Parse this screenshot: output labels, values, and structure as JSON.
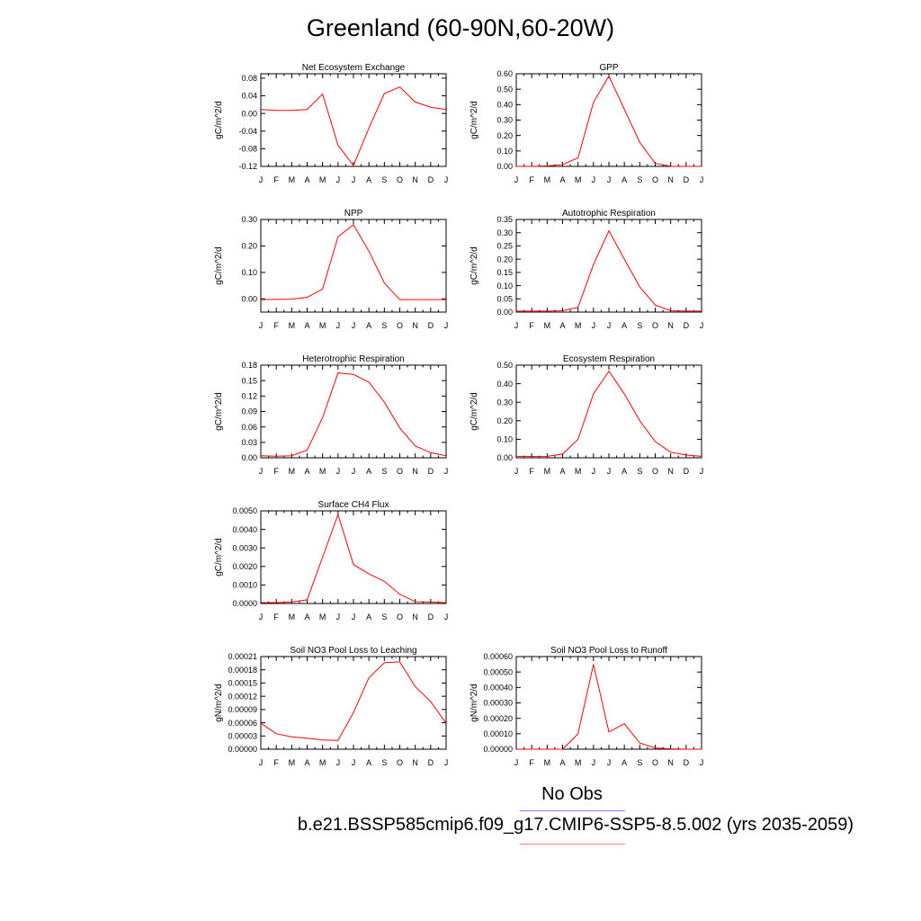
{
  "title": "Greenland (60-90N,60-20W)",
  "legend": {
    "obs_label": "No Obs",
    "obs_color": "#8080ff",
    "case_label": "b.e21.BSSP585cmip6.f09_g17.CMIP6-SSP5-8.5.002 (yrs 2035-2059)",
    "case_color": "#ff8080"
  },
  "chart_data": [
    {
      "type": "line",
      "title": "Net Ecosystem Exchange",
      "ylabel": "gC/m^2/d",
      "categories": [
        "J",
        "F",
        "M",
        "A",
        "M",
        "J",
        "J",
        "A",
        "S",
        "O",
        "N",
        "D",
        "J"
      ],
      "ylim": [
        -0.12,
        0.09
      ],
      "yticks": [
        "0.08",
        "0.04",
        "0.00",
        "-0.04",
        "-0.08",
        "-0.12"
      ],
      "series": [
        {
          "color": "#ff0000",
          "values": [
            0.009,
            0.007,
            0.007,
            0.009,
            0.044,
            -0.072,
            -0.118,
            -0.033,
            0.045,
            0.06,
            0.026,
            0.014,
            0.009
          ]
        }
      ]
    },
    {
      "type": "line",
      "title": "GPP",
      "ylabel": "gC/m^2/d",
      "categories": [
        "J",
        "F",
        "M",
        "A",
        "M",
        "J",
        "J",
        "A",
        "S",
        "O",
        "N",
        "D",
        "J"
      ],
      "ylim": [
        0,
        0.6
      ],
      "yticks": [
        "0.60",
        "0.50",
        "0.40",
        "0.30",
        "0.20",
        "0.10",
        "0.00"
      ],
      "series": [
        {
          "color": "#ff0000",
          "values": [
            0.0,
            0.0,
            0.003,
            0.012,
            0.055,
            0.415,
            0.585,
            0.37,
            0.155,
            0.02,
            0.001,
            0.0,
            0.0
          ]
        }
      ]
    },
    {
      "type": "line",
      "title": "NPP",
      "ylabel": "gC/m^2/d",
      "categories": [
        "J",
        "F",
        "M",
        "A",
        "M",
        "J",
        "J",
        "A",
        "S",
        "O",
        "N",
        "D",
        "J"
      ],
      "ylim": [
        -0.05,
        0.3
      ],
      "yticks": [
        "0.30",
        "0.20",
        "0.10",
        "0.00"
      ],
      "series": [
        {
          "color": "#ff0000",
          "values": [
            -0.003,
            -0.002,
            -0.001,
            0.006,
            0.037,
            0.235,
            0.28,
            0.18,
            0.06,
            -0.003,
            -0.003,
            -0.003,
            -0.003
          ]
        }
      ]
    },
    {
      "type": "line",
      "title": "Autotrophic Respiration",
      "ylabel": "gC/m^2/d",
      "categories": [
        "J",
        "F",
        "M",
        "A",
        "M",
        "J",
        "J",
        "A",
        "S",
        "O",
        "N",
        "D",
        "J"
      ],
      "ylim": [
        0,
        0.35
      ],
      "yticks": [
        "0.35",
        "0.30",
        "0.25",
        "0.20",
        "0.15",
        "0.10",
        "0.05",
        "0.00"
      ],
      "series": [
        {
          "color": "#ff0000",
          "values": [
            0.004,
            0.004,
            0.004,
            0.005,
            0.018,
            0.18,
            0.307,
            0.2,
            0.095,
            0.027,
            0.005,
            0.004,
            0.004
          ]
        }
      ]
    },
    {
      "type": "line",
      "title": "Heterotrophic Respiration",
      "ylabel": "gC/m^2/d",
      "categories": [
        "J",
        "F",
        "M",
        "A",
        "M",
        "J",
        "J",
        "A",
        "S",
        "O",
        "N",
        "D",
        "J"
      ],
      "ylim": [
        0,
        0.18
      ],
      "yticks": [
        "0.18",
        "0.15",
        "0.12",
        "0.09",
        "0.06",
        "0.03",
        "0.00"
      ],
      "series": [
        {
          "color": "#ff0000",
          "values": [
            0.004,
            0.003,
            0.004,
            0.015,
            0.078,
            0.165,
            0.162,
            0.147,
            0.108,
            0.058,
            0.023,
            0.01,
            0.004
          ]
        }
      ]
    },
    {
      "type": "line",
      "title": "Ecosystem Respiration",
      "ylabel": "gC/m^2/d",
      "categories": [
        "J",
        "F",
        "M",
        "A",
        "M",
        "J",
        "J",
        "A",
        "S",
        "O",
        "N",
        "D",
        "J"
      ],
      "ylim": [
        0,
        0.5
      ],
      "yticks": [
        "0.50",
        "0.40",
        "0.30",
        "0.20",
        "0.10",
        "0.00"
      ],
      "series": [
        {
          "color": "#ff0000",
          "values": [
            0.008,
            0.007,
            0.008,
            0.02,
            0.1,
            0.345,
            0.468,
            0.345,
            0.2,
            0.088,
            0.03,
            0.015,
            0.008
          ]
        }
      ]
    },
    {
      "type": "line",
      "title": "Surface CH4 Flux",
      "ylabel": "gC/m^2/d",
      "categories": [
        "J",
        "F",
        "M",
        "A",
        "M",
        "J",
        "J",
        "A",
        "S",
        "O",
        "N",
        "D",
        "J"
      ],
      "ylim": [
        0,
        0.005
      ],
      "yticks": [
        "0.0050",
        "0.0040",
        "0.0030",
        "0.0020",
        "0.0010",
        "0.0000"
      ],
      "series": [
        {
          "color": "#ff0000",
          "values": [
            5e-05,
            5e-05,
            8e-05,
            0.0002,
            0.0025,
            0.0048,
            0.0021,
            0.0016,
            0.0012,
            0.0005,
            0.0001,
            8e-05,
            5e-05
          ]
        }
      ]
    },
    {
      "type": "line",
      "title": "Soil NO3 Pool Loss to Leaching",
      "ylabel": "gN/m^2/d",
      "categories": [
        "J",
        "F",
        "M",
        "A",
        "M",
        "J",
        "J",
        "A",
        "S",
        "O",
        "N",
        "D",
        "J"
      ],
      "ylim": [
        0,
        0.00021
      ],
      "yticks": [
        "0.00021",
        "0.00018",
        "0.00015",
        "0.00012",
        "0.00009",
        "0.00006",
        "0.00003",
        "0.00000"
      ],
      "series": [
        {
          "color": "#ff0000",
          "values": [
            5.9e-05,
            3.5e-05,
            2.8e-05,
            2.5e-05,
            2.1e-05,
            2e-05,
            8.3e-05,
            0.000162,
            0.000196,
            0.000198,
            0.000142,
            0.000108,
            5.9e-05
          ]
        }
      ]
    },
    {
      "type": "line",
      "title": "Soil NO3 Pool Loss to Runoff",
      "ylabel": "gN/m^2/d",
      "categories": [
        "J",
        "F",
        "M",
        "A",
        "M",
        "J",
        "J",
        "A",
        "S",
        "O",
        "N",
        "D",
        "J"
      ],
      "ylim": [
        0,
        0.0006
      ],
      "yticks": [
        "0.00060",
        "0.00050",
        "0.00040",
        "0.00030",
        "0.00020",
        "0.00010",
        "0.00000"
      ],
      "series": [
        {
          "color": "#ff0000",
          "values": [
            0.0,
            0.0,
            0.0,
            0.0,
            0.0001,
            0.00055,
            0.000112,
            0.000165,
            4e-05,
            8e-06,
            2e-06,
            0.0,
            0.0
          ]
        }
      ]
    }
  ]
}
